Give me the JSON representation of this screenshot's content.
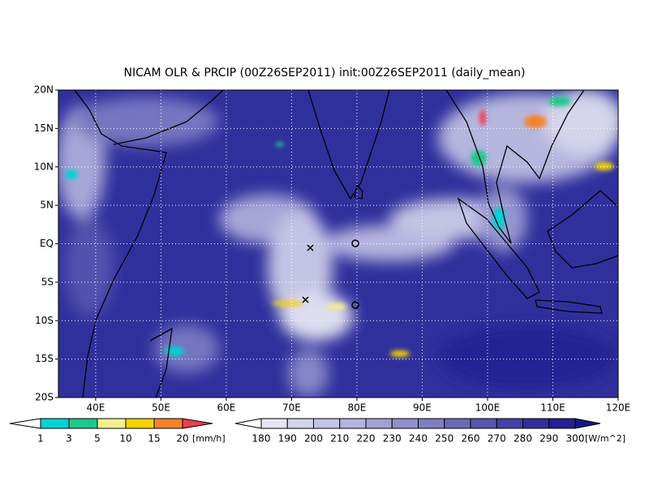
{
  "title": "NICAM OLR & PRCIP (00Z26SEP2011) init:00Z26SEP2011 (daily_mean)",
  "map": {
    "lon_range": [
      34.3,
      120
    ],
    "lat_range": [
      -20,
      20
    ],
    "lon_ticks": [
      {
        "value": 40,
        "label": "40E"
      },
      {
        "value": 50,
        "label": "50E"
      },
      {
        "value": 60,
        "label": "60E"
      },
      {
        "value": 70,
        "label": "70E"
      },
      {
        "value": 80,
        "label": "80E"
      },
      {
        "value": 90,
        "label": "90E"
      },
      {
        "value": 100,
        "label": "100E"
      },
      {
        "value": 110,
        "label": "110E"
      },
      {
        "value": 120,
        "label": "120E"
      }
    ],
    "lat_ticks": [
      {
        "value": 20,
        "label": "20N"
      },
      {
        "value": 15,
        "label": "15N"
      },
      {
        "value": 10,
        "label": "10N"
      },
      {
        "value": 5,
        "label": "5N"
      },
      {
        "value": 0,
        "label": "EQ"
      },
      {
        "value": -5,
        "label": "5S"
      },
      {
        "value": -10,
        "label": "10S"
      },
      {
        "value": -15,
        "label": "15S"
      },
      {
        "value": -20,
        "label": "20S"
      }
    ],
    "grid": true
  },
  "precip_colorbar": {
    "levels": [
      1,
      3,
      5,
      10,
      15,
      20
    ],
    "unit": "[mm/h]",
    "colors": [
      "#ffffff",
      "#00d2d2",
      "#1ec88c",
      "#f5f08c",
      "#f5d200",
      "#f58228",
      "#f03c50"
    ]
  },
  "olr_colorbar": {
    "levels": [
      180,
      190,
      200,
      210,
      220,
      230,
      240,
      250,
      260,
      270,
      280,
      290,
      300
    ],
    "unit": "[W/m^2]",
    "colors": [
      "#ffffff",
      "#e6e6f3",
      "#d4d4ec",
      "#c4c4e6",
      "#b4b4de",
      "#a2a2d6",
      "#9090cd",
      "#7e7ec4",
      "#6a6abb",
      "#5656b1",
      "#4242a7",
      "#30309d",
      "#222293",
      "#161688"
    ]
  }
}
